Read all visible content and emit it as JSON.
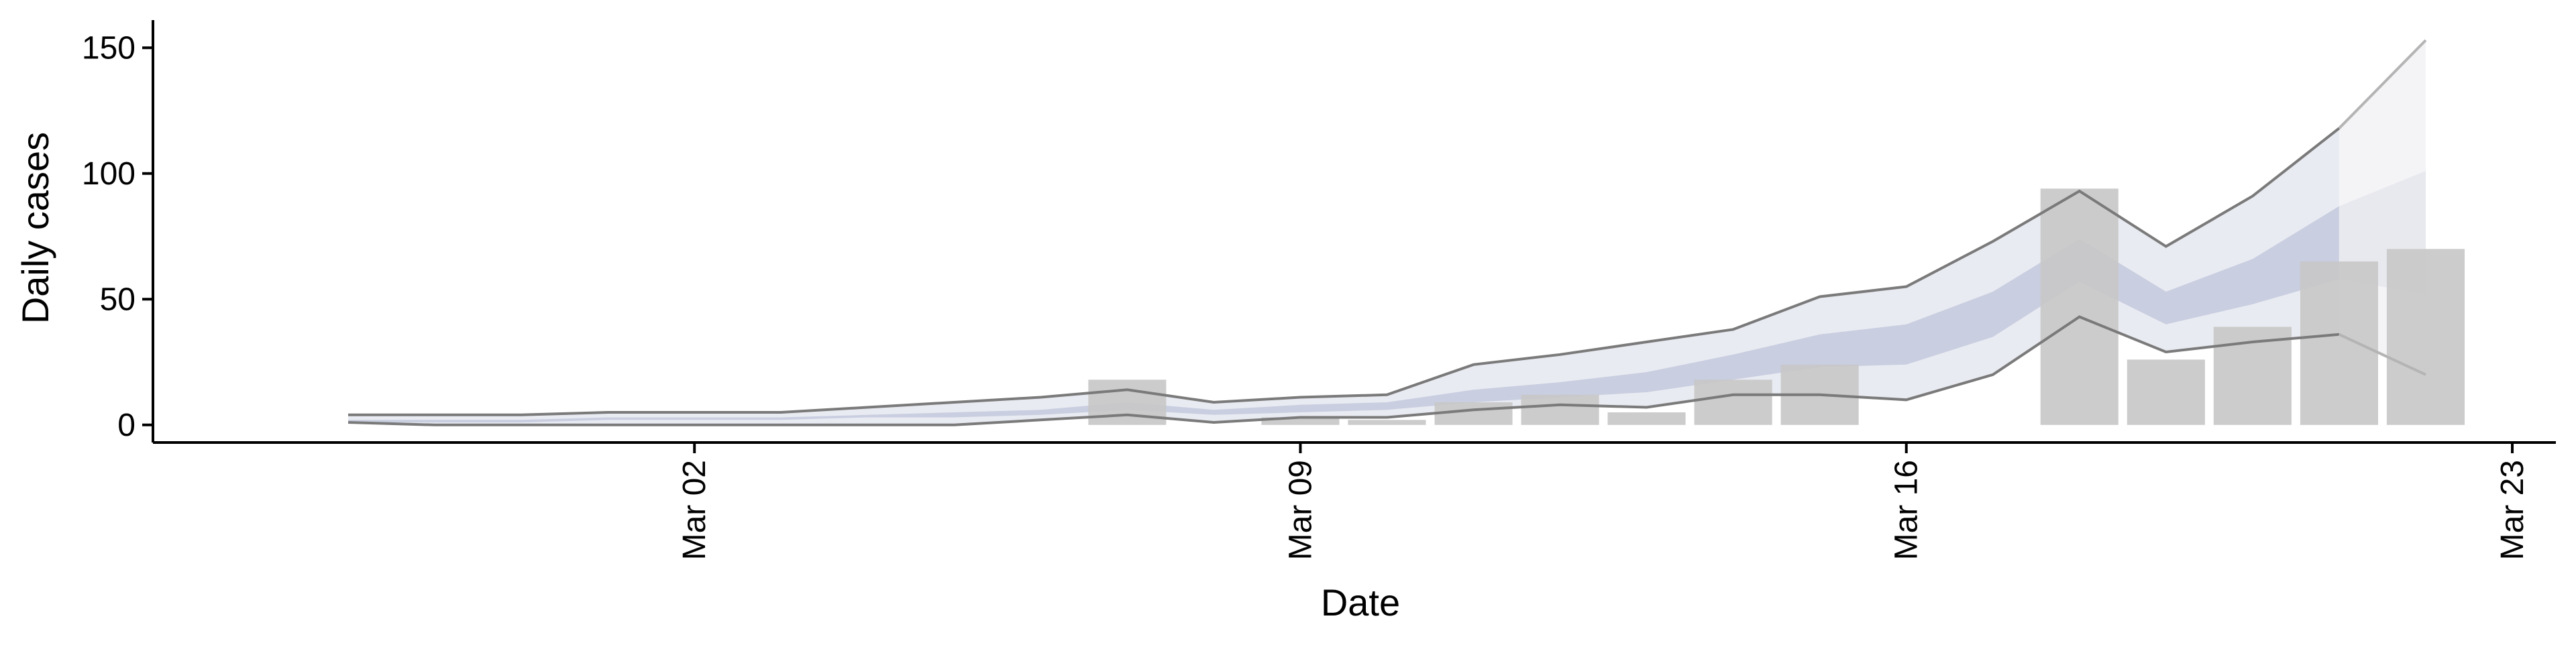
{
  "chart_data": {
    "type": "bar",
    "title": "",
    "xlabel": "Date",
    "ylabel": "Daily cases",
    "x_ticks": [
      "Mar 02",
      "Mar 09",
      "Mar 16",
      "Mar 23"
    ],
    "y_ticks": [
      "0",
      "50",
      "100",
      "150"
    ],
    "ylim": [
      -7,
      161
    ],
    "xlim": [
      "2020-02-26",
      "2020-03-23"
    ],
    "grid": false,
    "legend": "none",
    "bars": {
      "name": "",
      "dates": [
        "2020-03-07",
        "2020-03-09",
        "2020-03-10",
        "2020-03-11",
        "2020-03-12",
        "2020-03-13",
        "2020-03-14",
        "2020-03-15",
        "2020-03-18",
        "2020-03-19",
        "2020-03-20",
        "2020-03-21",
        "2020-03-22"
      ],
      "values": [
        18,
        3,
        2,
        9,
        12,
        5,
        18,
        24,
        94,
        26,
        39,
        65,
        70
      ]
    },
    "nowcast": {
      "dates": [
        "2020-02-27",
        "2020-02-28",
        "2020-02-29",
        "2020-03-01",
        "2020-03-02",
        "2020-03-03",
        "2020-03-04",
        "2020-03-05",
        "2020-03-06",
        "2020-03-07",
        "2020-03-08",
        "2020-03-09",
        "2020-03-10",
        "2020-03-11",
        "2020-03-12",
        "2020-03-13",
        "2020-03-14",
        "2020-03-15",
        "2020-03-16",
        "2020-03-17",
        "2020-03-18",
        "2020-03-19",
        "2020-03-20",
        "2020-03-21"
      ],
      "upper_90": [
        4,
        4,
        4,
        5,
        5,
        5,
        7,
        9,
        11,
        14,
        9,
        11,
        12,
        24,
        28,
        33,
        38,
        51,
        55,
        73,
        93,
        71,
        91,
        118
      ],
      "upper_50": [
        2,
        2,
        2,
        3,
        3,
        3,
        4,
        5,
        6,
        9,
        6,
        8,
        9,
        14,
        17,
        21,
        28,
        36,
        40,
        53,
        74,
        53,
        66,
        87
      ],
      "lower_50": [
        1,
        1,
        1,
        2,
        2,
        2,
        3,
        3,
        4,
        6,
        4,
        5,
        6,
        9,
        11,
        13,
        18,
        23,
        24,
        35,
        57,
        40,
        48,
        58
      ],
      "lower_90": [
        1,
        0,
        0,
        0,
        0,
        0,
        0,
        0,
        2,
        4,
        1,
        3,
        3,
        6,
        8,
        7,
        12,
        12,
        10,
        20,
        43,
        29,
        33,
        36
      ]
    },
    "forecast": {
      "dates": [
        "2020-03-21",
        "2020-03-22"
      ],
      "upper_90": [
        118,
        153
      ],
      "upper_50": [
        87,
        101
      ],
      "lower_50": [
        58,
        52
      ],
      "lower_90": [
        36,
        20
      ]
    },
    "colors": {
      "bars": "#c8c8c8",
      "band_90": "#e9ebf2",
      "band_50": "#c9cee0",
      "forecast_90": "#f4f4f7",
      "forecast_50": "#e8e9ef",
      "bound_line": "#7a7a7a",
      "forecast_line": "#b4b4b4"
    }
  }
}
